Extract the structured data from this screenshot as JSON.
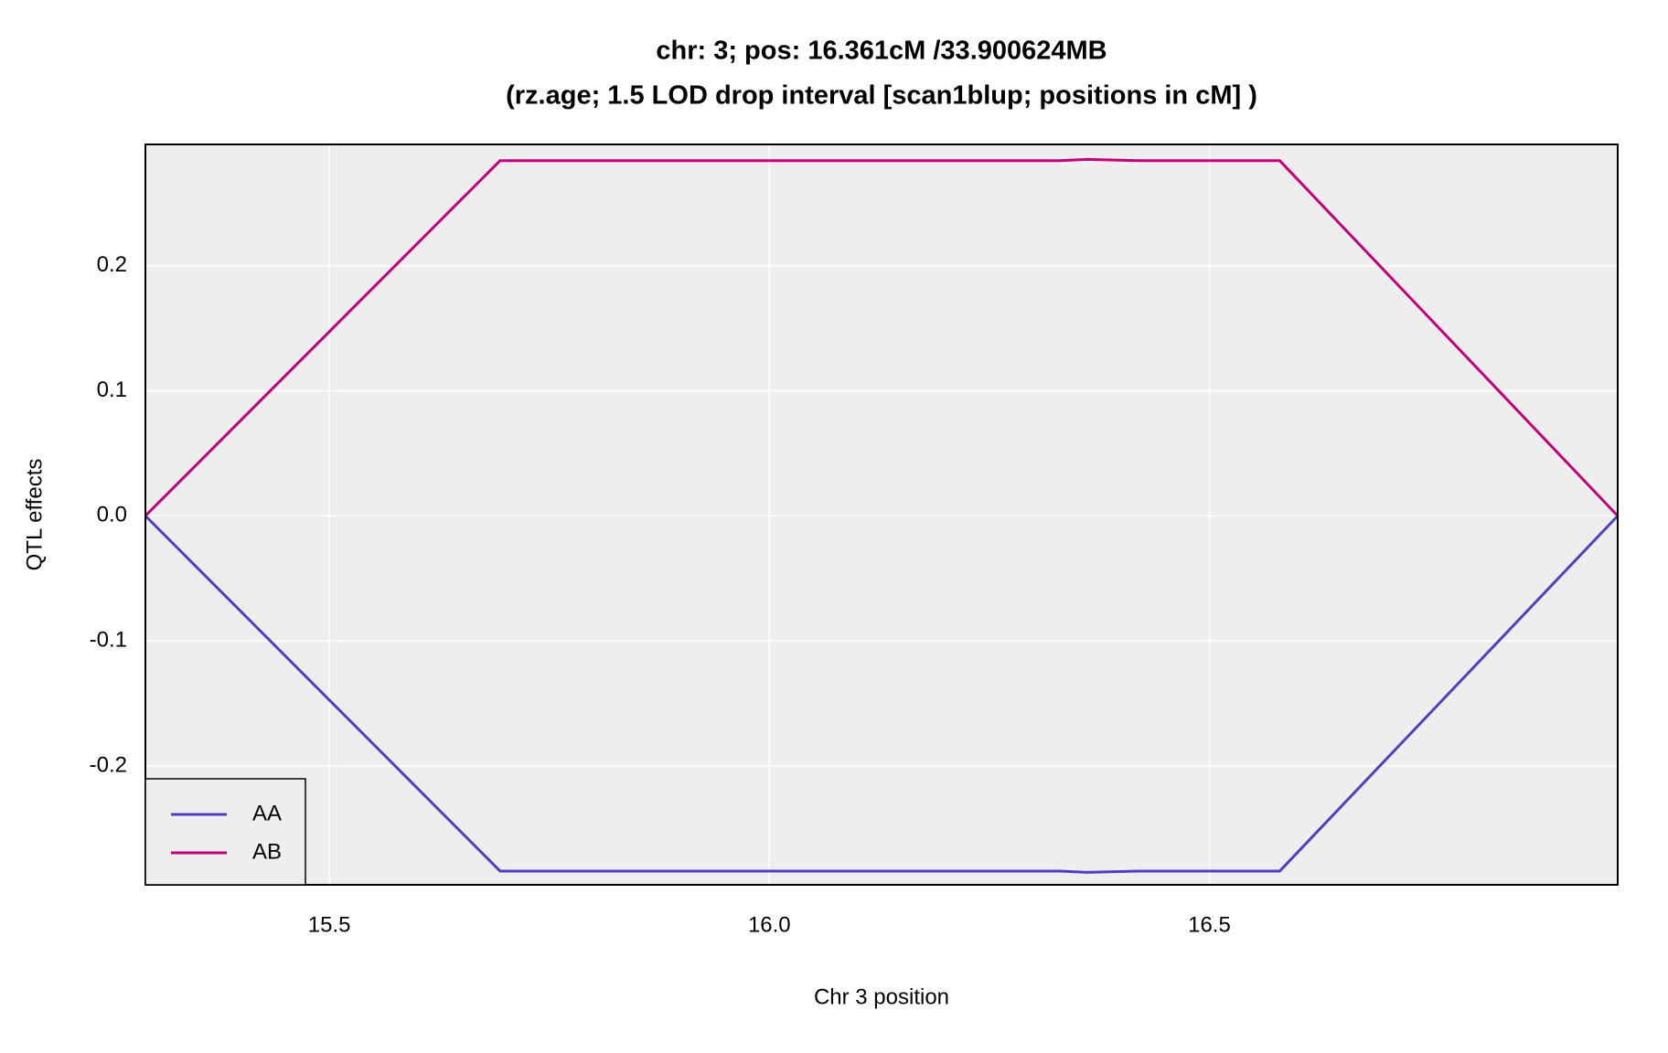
{
  "chart_data": {
    "type": "line",
    "title": "chr: 3; pos: 16.361cM /33.900624MB",
    "subtitle": "(rz.age; 1.5 LOD drop interval [scan1blup; positions in cM] )",
    "x_label": "Chr 3 position",
    "y_label": "QTL effects",
    "x": [
      15.291,
      15.694,
      16.0,
      16.33,
      16.361,
      16.42,
      16.58,
      16.964
    ],
    "series": [
      {
        "name": "AA",
        "color": "#5040c0",
        "values": [
          0,
          -0.284,
          -0.284,
          -0.284,
          -0.285,
          -0.284,
          -0.284,
          0
        ]
      },
      {
        "name": "AB",
        "color": "#c0007a",
        "values": [
          0,
          0.284,
          0.284,
          0.284,
          0.285,
          0.284,
          0.284,
          0
        ]
      }
    ],
    "xlim": [
      15.291,
      16.964
    ],
    "ylim": [
      -0.295,
      0.297
    ],
    "xticks": [
      15.5,
      {
        "value": 16,
        "label": "16.0"
      },
      16.5
    ],
    "yticks": [
      -0.2,
      -0.1,
      {
        "value": 0,
        "label": "0.0"
      },
      0.1,
      0.2
    ],
    "grid": true,
    "legend": "bottom-left"
  }
}
